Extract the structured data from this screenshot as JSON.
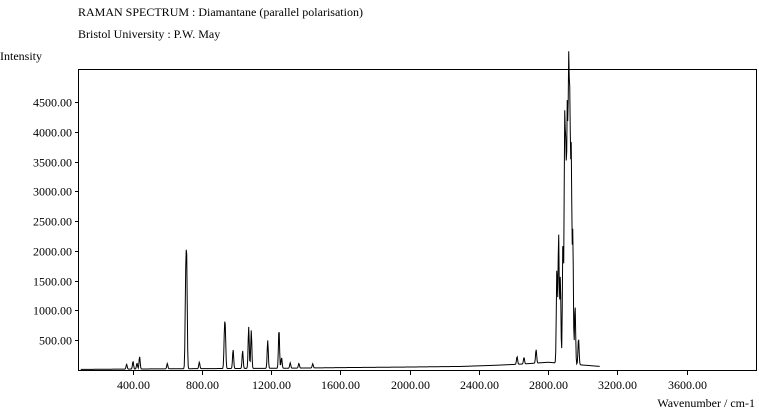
{
  "chart_data": {
    "type": "line",
    "title": "RAMAN SPECTRUM : Diamantane (parallel polarisation)",
    "subtitle": "Bristol University : P.W. May",
    "ylabel": "Intensity",
    "xlabel": "Wavenumber / cm-1",
    "xlim": [
      90,
      4000
    ],
    "ylim": [
      0,
      5040
    ],
    "x_ticks": [
      400,
      800,
      1200,
      1600,
      2000,
      2400,
      2800,
      3200,
      3600
    ],
    "x_tick_labels": [
      "400.00",
      "800.00",
      "1200.00",
      "1600.00",
      "2000.00",
      "2400.00",
      "2800.00",
      "3200.00",
      "3600.00"
    ],
    "y_ticks": [
      500,
      1000,
      1500,
      2000,
      2500,
      3000,
      3500,
      4000,
      4500
    ],
    "y_tick_labels": [
      "500.00",
      "1000.00",
      "1500.00",
      "2000.00",
      "2500.00",
      "3000.00",
      "3500.00",
      "4000.00",
      "4500.00"
    ],
    "grid": false,
    "baseline": {
      "x": [
        100,
        600,
        1300,
        1600,
        2000,
        2300,
        2500,
        2650,
        2800,
        3100
      ],
      "y": [
        10,
        20,
        30,
        40,
        50,
        60,
        80,
        100,
        130,
        60
      ]
    },
    "peaks": [
      {
        "x": 365,
        "y": 80
      },
      {
        "x": 402,
        "y": 130
      },
      {
        "x": 425,
        "y": 100
      },
      {
        "x": 440,
        "y": 210
      },
      {
        "x": 600,
        "y": 90
      },
      {
        "x": 706,
        "y": 1350
      },
      {
        "x": 712,
        "y": 1720
      },
      {
        "x": 785,
        "y": 110
      },
      {
        "x": 930,
        "y": 530
      },
      {
        "x": 935,
        "y": 560
      },
      {
        "x": 980,
        "y": 320
      },
      {
        "x": 1035,
        "y": 300
      },
      {
        "x": 1070,
        "y": 700
      },
      {
        "x": 1085,
        "y": 640
      },
      {
        "x": 1180,
        "y": 470
      },
      {
        "x": 1245,
        "y": 660
      },
      {
        "x": 1260,
        "y": 180
      },
      {
        "x": 1310,
        "y": 90
      },
      {
        "x": 1360,
        "y": 80
      },
      {
        "x": 1440,
        "y": 70
      },
      {
        "x": 2620,
        "y": 130
      },
      {
        "x": 2660,
        "y": 110
      },
      {
        "x": 2730,
        "y": 230
      },
      {
        "x": 2850,
        "y": 1600
      },
      {
        "x": 2860,
        "y": 2180
      },
      {
        "x": 2870,
        "y": 1450
      },
      {
        "x": 2885,
        "y": 2100
      },
      {
        "x": 2895,
        "y": 3900
      },
      {
        "x": 2902,
        "y": 3200
      },
      {
        "x": 2910,
        "y": 4100
      },
      {
        "x": 2918,
        "y": 4680
      },
      {
        "x": 2925,
        "y": 4000
      },
      {
        "x": 2933,
        "y": 3500
      },
      {
        "x": 2942,
        "y": 2200
      },
      {
        "x": 2955,
        "y": 1000
      },
      {
        "x": 2975,
        "y": 450
      }
    ]
  }
}
